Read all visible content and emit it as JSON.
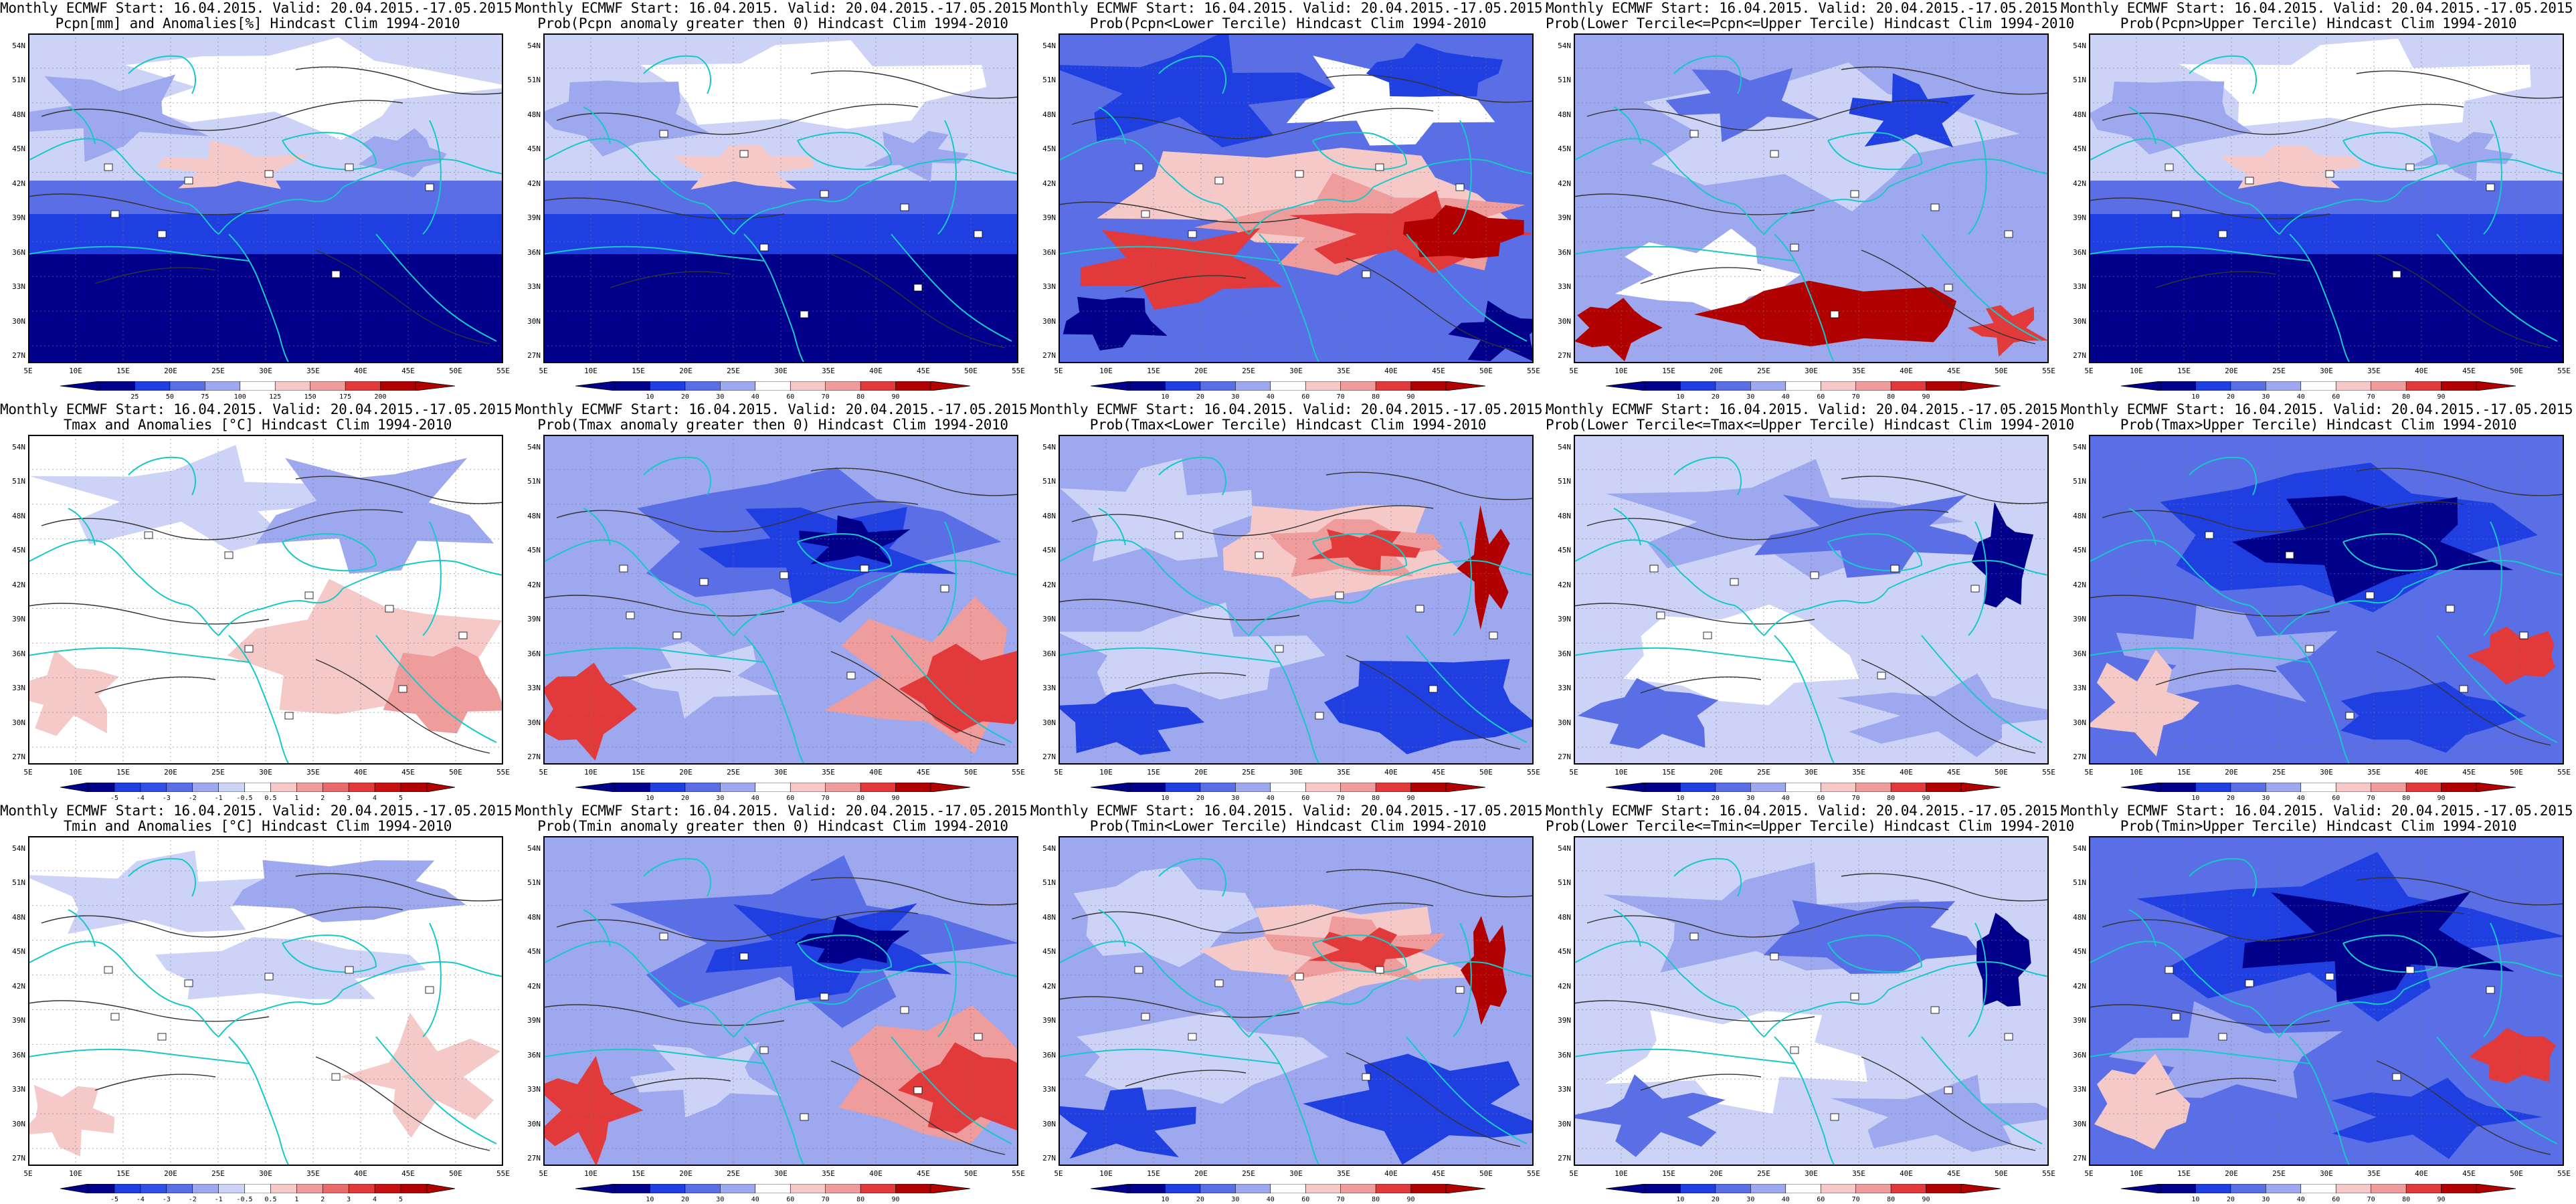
{
  "lat_labels": [
    "54N",
    "51N",
    "48N",
    "45N",
    "42N",
    "39N",
    "36N",
    "33N",
    "30N",
    "27N"
  ],
  "lon_labels": [
    "5E",
    "10E",
    "15E",
    "20E",
    "25E",
    "30E",
    "35E",
    "40E",
    "45E",
    "50E",
    "55E"
  ],
  "colorbars": {
    "pcpn_anom": [
      "25",
      "50",
      "75",
      "100",
      "125",
      "150",
      "175",
      "200"
    ],
    "temp_anom": [
      "-5",
      "-4",
      "-3",
      "-2",
      "-1",
      "-0.5",
      "0.5",
      "1",
      "2",
      "3",
      "4",
      "5"
    ],
    "prob": [
      "10",
      "20",
      "30",
      "40",
      "60",
      "70",
      "80",
      "90"
    ]
  },
  "colors": {
    "dark_blue": "#00008b",
    "blue": "#1f3fe0",
    "mid_blue": "#5a6ee6",
    "light_blue": "#9ea8ee",
    "pale_blue": "#cdd3f6",
    "white": "#ffffff",
    "pale_red": "#f6c9c9",
    "light_red": "#ee9c9c",
    "red": "#e23a3a",
    "dark_red": "#b00000",
    "coast": "#18c8c8",
    "contour": "#333333"
  },
  "panels": [
    {
      "id": "p11",
      "line1": "Monthly ECMWF Start: 16.04.2015. Valid: 20.04.2015.-17.05.2015.",
      "line2": "Pcpn[mm] and Anomalies[%] Hindcast Clim 1994-2010",
      "cbar": "pcpn_anom",
      "scheme": "bands_blue"
    },
    {
      "id": "p12",
      "line1": "Monthly ECMWF Start: 16.04.2015. Valid: 20.04.2015.-17.05.2015.",
      "line2": "Prob(Pcpn anomaly greater then 0) Hindcast Clim 1994-2010",
      "cbar": "prob",
      "scheme": "bands_blue"
    },
    {
      "id": "p13",
      "line1": "Monthly ECMWF Start: 16.04.2015. Valid: 20.04.2015.-17.05.2015.",
      "line2": "Prob(Pcpn<Lower Tercile) Hindcast Clim 1994-2010",
      "cbar": "prob",
      "scheme": "south_red"
    },
    {
      "id": "p14",
      "line1": "Monthly ECMWF Start: 16.04.2015. Valid: 20.04.2015.-17.05.2015.",
      "line2": "Prob(Lower Tercile<=Pcpn<=Upper Tercile) Hindcast Clim 1994-2010",
      "cbar": "prob",
      "scheme": "mixed_blue_sw_red"
    },
    {
      "id": "p15",
      "line1": "Monthly ECMWF Start: 16.04.2015. Valid: 20.04.2015.-17.05.2015.",
      "line2": "Prob(Pcpn>Upper Tercile) Hindcast Clim 1994-2010",
      "cbar": "prob",
      "scheme": "bands_blue"
    },
    {
      "id": "p21",
      "line1": "Monthly ECMWF Start: 16.04.2015. Valid: 20.04.2015.-17.05.2015.",
      "line2": "Tmax and Anomalies [°C] Hindcast Clim 1994-2010",
      "cbar": "temp_anom",
      "scheme": "pale_se_red"
    },
    {
      "id": "p22",
      "line1": "Monthly ECMWF Start: 16.04.2015. Valid: 20.04.2015.-17.05.2015.",
      "line2": "Prob(Tmax anomaly greater then 0) Hindcast Clim 1994-2010",
      "cbar": "prob",
      "scheme": "blue_se_red"
    },
    {
      "id": "p23",
      "line1": "Monthly ECMWF Start: 16.04.2015. Valid: 20.04.2015.-17.05.2015.",
      "line2": "Prob(Tmax<Lower Tercile) Hindcast Clim 1994-2010",
      "cbar": "prob",
      "scheme": "mixed_center_red"
    },
    {
      "id": "p24",
      "line1": "Monthly ECMWF Start: 16.04.2015. Valid: 20.04.2015.-17.05.2015.",
      "line2": "Prob(Lower Tercile<=Tmax<=Upper Tercile) Hindcast Clim 1994-2010",
      "cbar": "prob",
      "scheme": "mixed_blue"
    },
    {
      "id": "p25",
      "line1": "Monthly ECMWF Start: 16.04.2015. Valid: 20.04.2015.-17.05.2015.",
      "line2": "Prob(Tmax>Upper Tercile) Hindcast Clim 1994-2010",
      "cbar": "prob",
      "scheme": "blue_sw_red"
    },
    {
      "id": "p31",
      "line1": "Monthly ECMWF Start: 16.04.2015. Valid: 20.04.2015.-17.05.2015.",
      "line2": "Tmin and Anomalies [°C] Hindcast Clim 1994-2010",
      "cbar": "temp_anom",
      "scheme": "pale_mixed"
    },
    {
      "id": "p32",
      "line1": "Monthly ECMWF Start: 16.04.2015. Valid: 20.04.2015.-17.05.2015.",
      "line2": "Prob(Tmin anomaly greater then 0) Hindcast Clim 1994-2010",
      "cbar": "prob",
      "scheme": "blue_se_red"
    },
    {
      "id": "p33",
      "line1": "Monthly ECMWF Start: 16.04.2015. Valid: 20.04.2015.-17.05.2015.",
      "line2": "Prob(Tmin<Lower Tercile) Hindcast Clim 1994-2010",
      "cbar": "prob",
      "scheme": "mixed_center_red"
    },
    {
      "id": "p34",
      "line1": "Monthly ECMWF Start: 16.04.2015. Valid: 20.04.2015.-17.05.2015.",
      "line2": "Prob(Lower Tercile<=Tmin<=Upper Tercile) Hindcast Clim 1994-2010",
      "cbar": "prob",
      "scheme": "mixed_blue"
    },
    {
      "id": "p35",
      "line1": "Monthly ECMWF Start: 16.04.2015. Valid: 20.04.2015.-17.05.2015.",
      "line2": "Prob(Tmin>Upper Tercile) Hindcast Clim 1994-2010",
      "cbar": "prob",
      "scheme": "blue_sw_red"
    }
  ]
}
